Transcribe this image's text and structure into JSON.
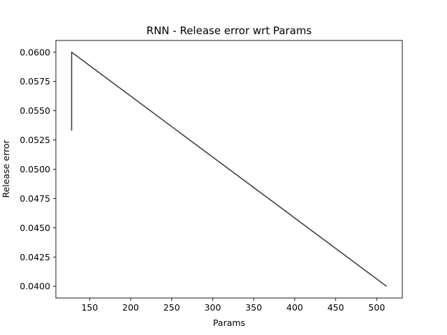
{
  "chart_data": {
    "type": "line",
    "title": "RNN - Release error wrt Params",
    "xlabel": "Params",
    "ylabel": "Release error",
    "xlim": [
      108.8,
      531.2
    ],
    "ylim": [
      0.039,
      0.061
    ],
    "xticks": [
      150,
      200,
      250,
      300,
      350,
      400,
      450,
      500
    ],
    "xtick_labels": [
      "150",
      "200",
      "250",
      "300",
      "350",
      "400",
      "450",
      "500"
    ],
    "yticks": [
      0.04,
      0.0425,
      0.045,
      0.0475,
      0.05,
      0.0525,
      0.055,
      0.0575,
      0.06
    ],
    "ytick_labels": [
      "0.0400",
      "0.0425",
      "0.0450",
      "0.0475",
      "0.0500",
      "0.0525",
      "0.0550",
      "0.0575",
      "0.0600"
    ],
    "grid": false,
    "series": [
      {
        "color": "#404040",
        "x": [
          128,
          128,
          512
        ],
        "y": [
          0.0533,
          0.06,
          0.04
        ]
      }
    ]
  }
}
